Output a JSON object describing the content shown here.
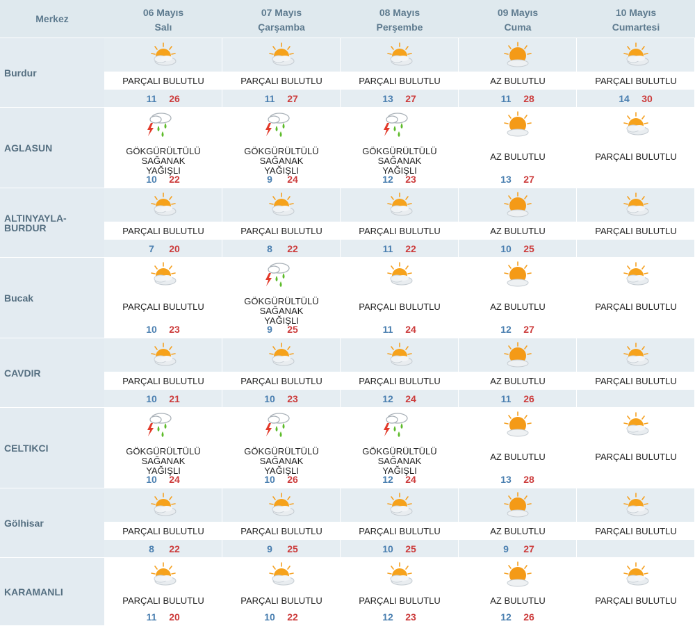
{
  "header": {
    "corner": "Merkez",
    "days": [
      {
        "date": "06 Mayıs",
        "weekday": "Salı"
      },
      {
        "date": "07 Mayıs",
        "weekday": "Çarşamba"
      },
      {
        "date": "08 Mayıs",
        "weekday": "Perşembe"
      },
      {
        "date": "09 Mayıs",
        "weekday": "Cuma"
      },
      {
        "date": "10 Mayıs",
        "weekday": "Cumartesi"
      }
    ]
  },
  "colors": {
    "header_bg": "#dfe9ee",
    "band_bg": "#e5edf2",
    "min_temp": "#4a7fb0",
    "max_temp": "#cc3b3b"
  },
  "rows": [
    {
      "city": "Burdur",
      "days": [
        {
          "icon": "partly-cloudy-icon",
          "condition": "PARÇALI BULUTLU",
          "min": "11",
          "max": "26"
        },
        {
          "icon": "partly-cloudy-icon",
          "condition": "PARÇALI BULUTLU",
          "min": "11",
          "max": "27"
        },
        {
          "icon": "partly-cloudy-icon",
          "condition": "PARÇALI BULUTLU",
          "min": "13",
          "max": "27"
        },
        {
          "icon": "mostly-sunny-icon",
          "condition": "AZ BULUTLU",
          "min": "11",
          "max": "28"
        },
        {
          "icon": "partly-cloudy-icon",
          "condition": "PARÇALI BULUTLU",
          "min": "14",
          "max": "30"
        }
      ]
    },
    {
      "city": "AGLASUN",
      "days": [
        {
          "icon": "thunderstorm-icon",
          "condition": "GÖKGÜRÜLTÜLÜ SAĞANAK YAĞIŞLI",
          "min": "10",
          "max": "22"
        },
        {
          "icon": "thunderstorm-icon",
          "condition": "GÖKGÜRÜLTÜLÜ SAĞANAK YAĞIŞLI",
          "min": "9",
          "max": "24"
        },
        {
          "icon": "thunderstorm-icon",
          "condition": "GÖKGÜRÜLTÜLÜ SAĞANAK YAĞIŞLI",
          "min": "12",
          "max": "23"
        },
        {
          "icon": "mostly-sunny-icon",
          "condition": "AZ BULUTLU",
          "min": "13",
          "max": "27"
        },
        {
          "icon": "partly-cloudy-icon",
          "condition": "PARÇALI BULUTLU",
          "min": "",
          "max": ""
        }
      ]
    },
    {
      "city": "ALTINYAYLA-BURDUR",
      "days": [
        {
          "icon": "partly-cloudy-icon",
          "condition": "PARÇALI BULUTLU",
          "min": "7",
          "max": "20"
        },
        {
          "icon": "partly-cloudy-icon",
          "condition": "PARÇALI BULUTLU",
          "min": "8",
          "max": "22"
        },
        {
          "icon": "partly-cloudy-icon",
          "condition": "PARÇALI BULUTLU",
          "min": "11",
          "max": "22"
        },
        {
          "icon": "mostly-sunny-icon",
          "condition": "AZ BULUTLU",
          "min": "10",
          "max": "25"
        },
        {
          "icon": "partly-cloudy-icon",
          "condition": "PARÇALI BULUTLU",
          "min": "",
          "max": ""
        }
      ]
    },
    {
      "city": "Bucak",
      "days": [
        {
          "icon": "partly-cloudy-icon",
          "condition": "PARÇALI BULUTLU",
          "min": "10",
          "max": "23"
        },
        {
          "icon": "thunderstorm-icon",
          "condition": "GÖKGÜRÜLTÜLÜ SAĞANAK YAĞIŞLI",
          "min": "9",
          "max": "25"
        },
        {
          "icon": "partly-cloudy-icon",
          "condition": "PARÇALI BULUTLU",
          "min": "11",
          "max": "24"
        },
        {
          "icon": "mostly-sunny-icon",
          "condition": "AZ BULUTLU",
          "min": "12",
          "max": "27"
        },
        {
          "icon": "partly-cloudy-icon",
          "condition": "PARÇALI BULUTLU",
          "min": "",
          "max": ""
        }
      ]
    },
    {
      "city": "CAVDIR",
      "days": [
        {
          "icon": "partly-cloudy-icon",
          "condition": "PARÇALI BULUTLU",
          "min": "10",
          "max": "21"
        },
        {
          "icon": "partly-cloudy-icon",
          "condition": "PARÇALI BULUTLU",
          "min": "10",
          "max": "23"
        },
        {
          "icon": "partly-cloudy-icon",
          "condition": "PARÇALI BULUTLU",
          "min": "12",
          "max": "24"
        },
        {
          "icon": "mostly-sunny-icon",
          "condition": "AZ BULUTLU",
          "min": "11",
          "max": "26"
        },
        {
          "icon": "partly-cloudy-icon",
          "condition": "PARÇALI BULUTLU",
          "min": "",
          "max": ""
        }
      ]
    },
    {
      "city": "CELTIKCI",
      "days": [
        {
          "icon": "thunderstorm-icon",
          "condition": "GÖKGÜRÜLTÜLÜ SAĞANAK YAĞIŞLI",
          "min": "10",
          "max": "24"
        },
        {
          "icon": "thunderstorm-icon",
          "condition": "GÖKGÜRÜLTÜLÜ SAĞANAK YAĞIŞLI",
          "min": "10",
          "max": "26"
        },
        {
          "icon": "thunderstorm-icon",
          "condition": "GÖKGÜRÜLTÜLÜ SAĞANAK YAĞIŞLI",
          "min": "12",
          "max": "24"
        },
        {
          "icon": "mostly-sunny-icon",
          "condition": "AZ BULUTLU",
          "min": "13",
          "max": "28"
        },
        {
          "icon": "partly-cloudy-icon",
          "condition": "PARÇALI BULUTLU",
          "min": "",
          "max": ""
        }
      ]
    },
    {
      "city": "Gölhisar",
      "days": [
        {
          "icon": "partly-cloudy-icon",
          "condition": "PARÇALI BULUTLU",
          "min": "8",
          "max": "22"
        },
        {
          "icon": "partly-cloudy-icon",
          "condition": "PARÇALI BULUTLU",
          "min": "9",
          "max": "25"
        },
        {
          "icon": "partly-cloudy-icon",
          "condition": "PARÇALI BULUTLU",
          "min": "10",
          "max": "25"
        },
        {
          "icon": "mostly-sunny-icon",
          "condition": "AZ BULUTLU",
          "min": "9",
          "max": "27"
        },
        {
          "icon": "partly-cloudy-icon",
          "condition": "PARÇALI BULUTLU",
          "min": "",
          "max": ""
        }
      ]
    },
    {
      "city": "KARAMANLI",
      "days": [
        {
          "icon": "partly-cloudy-icon",
          "condition": "PARÇALI BULUTLU",
          "min": "11",
          "max": "20"
        },
        {
          "icon": "partly-cloudy-icon",
          "condition": "PARÇALI BULUTLU",
          "min": "10",
          "max": "22"
        },
        {
          "icon": "partly-cloudy-icon",
          "condition": "PARÇALI BULUTLU",
          "min": "12",
          "max": "23"
        },
        {
          "icon": "mostly-sunny-icon",
          "condition": "AZ BULUTLU",
          "min": "12",
          "max": "26"
        },
        {
          "icon": "partly-cloudy-icon",
          "condition": "PARÇALI BULUTLU",
          "min": "",
          "max": ""
        }
      ]
    }
  ]
}
